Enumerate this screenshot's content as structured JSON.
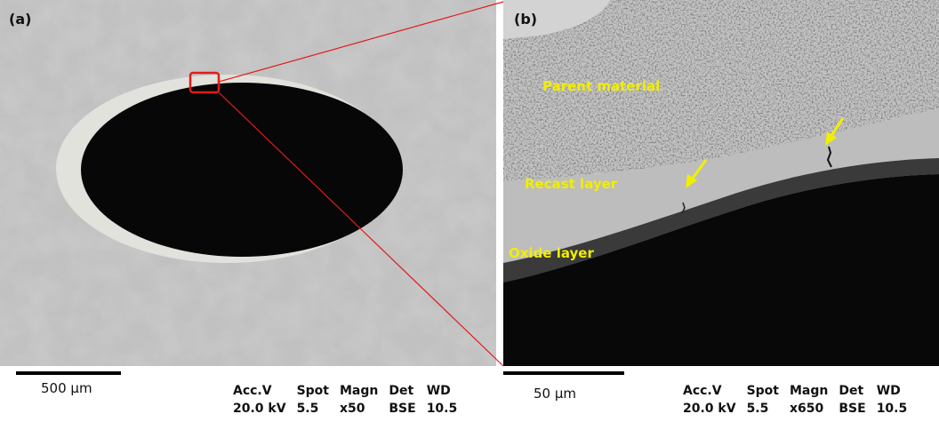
{
  "panel_a": {
    "label": "(a)",
    "scale_text": "500 µm",
    "meta_headers": [
      "Acc.V",
      "Spot",
      "Magn",
      "Det",
      "WD"
    ],
    "meta_values": [
      "20.0 kV",
      "5.5",
      "x50",
      "BSE",
      "10.5"
    ]
  },
  "panel_b": {
    "label": "(b)",
    "annotations": {
      "parent": "Parent material",
      "recast": "Recast layer",
      "oxide": "Oxide layer"
    },
    "scale_text": "50 µm",
    "meta_headers": [
      "Acc.V",
      "Spot",
      "Magn",
      "Det",
      "WD"
    ],
    "meta_values": [
      "20.0 kV",
      "5.5",
      "x650",
      "BSE",
      "10.5"
    ]
  },
  "colors": {
    "zoom_box": "#e21b1b",
    "arrow": "#f2ee00",
    "annotation_text": "#f2ee00",
    "background_gray": "#b9b9b9",
    "hole_black": "#070707"
  }
}
